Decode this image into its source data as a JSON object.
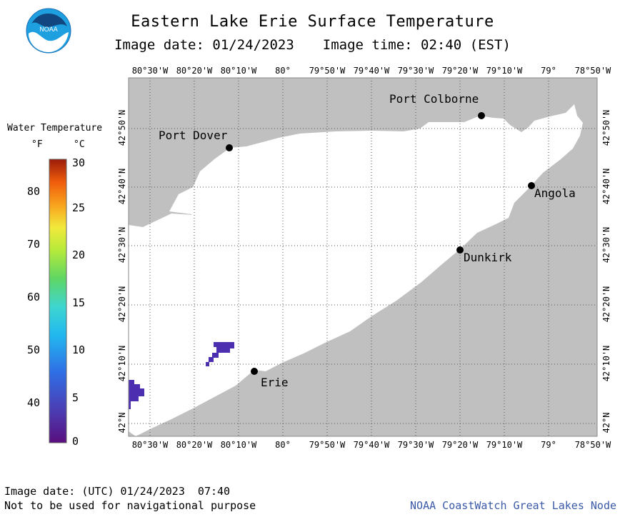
{
  "title": "Eastern Lake Erie Surface Temperature",
  "image_date_label": "Image date: 01/24/2023",
  "image_time_label": "Image time: 02:40 (EST)",
  "legend": {
    "title": "Water Temperature",
    "unit_f": "°F",
    "unit_c": "°C",
    "f_ticks": [
      "80",
      "70",
      "60",
      "50",
      "40"
    ],
    "c_ticks": [
      "30",
      "25",
      "20",
      "15",
      "10",
      "5",
      "0"
    ]
  },
  "axes": {
    "lon_ticks": [
      "80°30'W",
      "80°20'W",
      "80°10'W",
      "80°",
      "79°50'W",
      "79°40'W",
      "79°30'W",
      "79°20'W",
      "79°10'W",
      "79°",
      "78°50'W"
    ],
    "lat_ticks": [
      "42°50'N",
      "42°40'N",
      "42°30'N",
      "42°20'N",
      "42°10'N",
      "42°N"
    ]
  },
  "cities": [
    {
      "name": "Port Colborne"
    },
    {
      "name": "Port Dover"
    },
    {
      "name": "Angola"
    },
    {
      "name": "Dunkirk"
    },
    {
      "name": "Erie"
    }
  ],
  "logo_text": "NOAA",
  "colors": {
    "land": "#c0c0c0",
    "lake": "#ffffff",
    "cold_water": "#4b2fb0"
  },
  "footer": {
    "utc_date": "Image date: (UTC) 01/24/2023  07:40",
    "disclaimer": "Not to be used for navigational purpose",
    "credit": "NOAA CoastWatch Great Lakes Node"
  }
}
